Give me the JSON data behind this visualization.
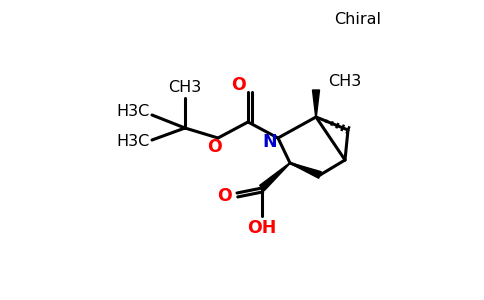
{
  "background_color": "#ffffff",
  "text_color_black": "#000000",
  "text_color_red": "#ff0000",
  "text_color_blue": "#0000cc",
  "chiral_label": "Chiral",
  "ch3_label": "CH3",
  "h3c_label": "H3C",
  "oxygen_carbonyl": "O",
  "oxygen_ether": "O",
  "nitrogen": "N",
  "cooh_o": "O",
  "cooh_oh": "OH",
  "lw": 2.2,
  "fs": 11.5
}
